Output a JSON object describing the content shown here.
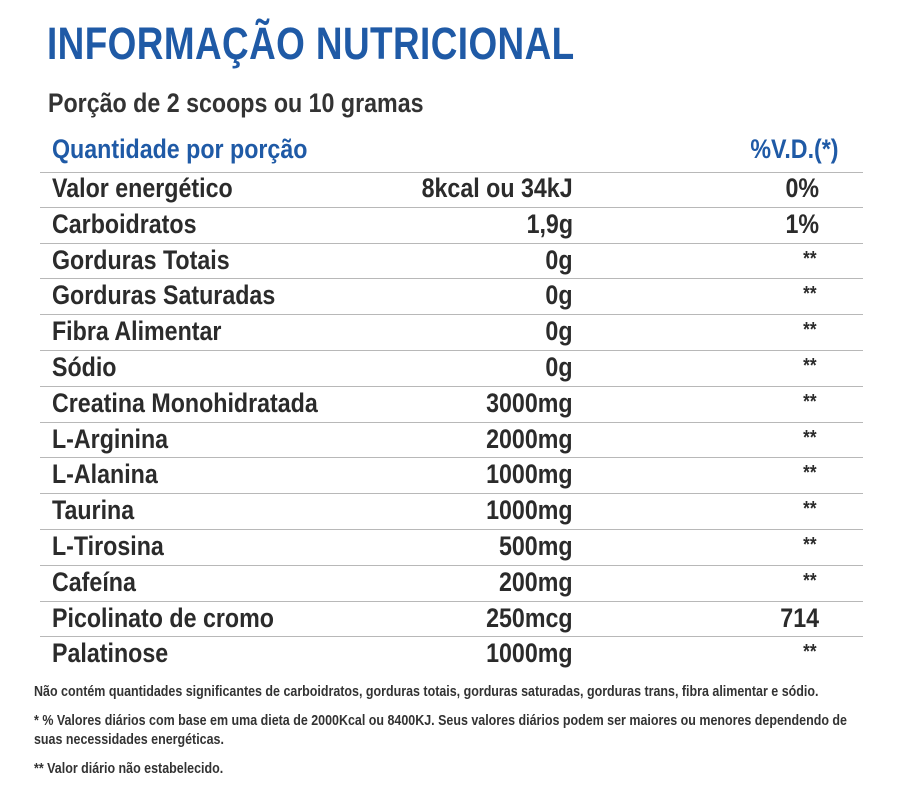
{
  "title": "INFORMAÇÃO NUTRICIONAL",
  "portion": "Porção de 2 scoops ou 10 gramas",
  "header": {
    "quantity": "Quantidade por porção",
    "vd": "%V.D.(*)"
  },
  "rows": [
    {
      "name": "Valor energético",
      "qty": "8kcal ou 34kJ",
      "vd": "0%"
    },
    {
      "name": "Carboidratos",
      "qty": "1,9g",
      "vd": "1%"
    },
    {
      "name": "Gorduras Totais",
      "qty": "0g",
      "vd": "**"
    },
    {
      "name": "Gorduras Saturadas",
      "qty": "0g",
      "vd": "**"
    },
    {
      "name": "Fibra Alimentar",
      "qty": "0g",
      "vd": "**"
    },
    {
      "name": "Sódio",
      "qty": "0g",
      "vd": "**"
    },
    {
      "name": "Creatina Monohidratada",
      "qty": "3000mg",
      "vd": "**"
    },
    {
      "name": "L-Arginina",
      "qty": "2000mg",
      "vd": "**"
    },
    {
      "name": "L-Alanina",
      "qty": "1000mg",
      "vd": "**"
    },
    {
      "name": "Taurina",
      "qty": "1000mg",
      "vd": "**"
    },
    {
      "name": "L-Tirosina",
      "qty": "500mg",
      "vd": "**"
    },
    {
      "name": "Cafeína",
      "qty": "200mg",
      "vd": "**"
    },
    {
      "name": "Picolinato de cromo",
      "qty": "250mcg",
      "vd": "714"
    },
    {
      "name": "Palatinose",
      "qty": "1000mg",
      "vd": "**"
    }
  ],
  "notes": [
    "Não contém quantidades significantes de carboidratos, gorduras totais, gorduras saturadas, gorduras trans, fibra alimentar e sódio.",
    "* % Valores diários com base em uma dieta de 2000Kcal ou 8400KJ. Seus valores diários podem ser maiores ou menores dependendo de suas necessidades energéticas.",
    "** Valor diário não estabelecido."
  ],
  "colors": {
    "accent": "#1f5aa6",
    "text": "#2b2b2b",
    "divider": "#b8b8b8"
  }
}
